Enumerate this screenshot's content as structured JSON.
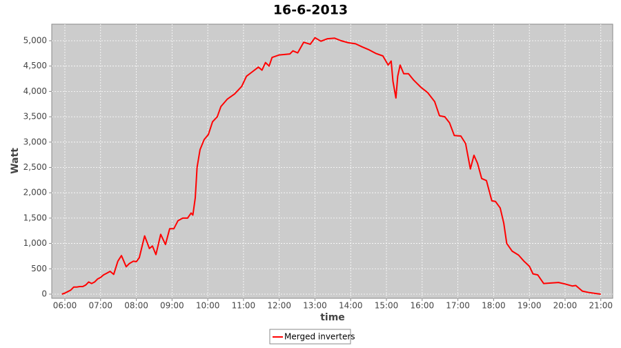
{
  "chart_data": {
    "type": "line",
    "title": "16-6-2013",
    "x_label": "time",
    "y_label": "Watt",
    "x": [
      "05:55",
      "06:00",
      "06:05",
      "06:10",
      "06:15",
      "06:20",
      "06:25",
      "06:30",
      "06:35",
      "06:40",
      "06:45",
      "06:50",
      "06:55",
      "07:00",
      "07:05",
      "07:10",
      "07:16",
      "07:22",
      "07:29",
      "07:35",
      "07:43",
      "07:48",
      "07:55",
      "08:00",
      "08:05",
      "08:14",
      "08:22",
      "08:27",
      "08:33",
      "08:41",
      "08:49",
      "08:56",
      "09:03",
      "09:10",
      "09:18",
      "09:26",
      "09:32",
      "09:35",
      "09:39",
      "09:42",
      "09:47",
      "09:54",
      "10:01",
      "10:08",
      "10:16",
      "10:22",
      "10:33",
      "10:45",
      "10:57",
      "11:05",
      "11:14",
      "11:25",
      "11:31",
      "11:37",
      "11:43",
      "11:48",
      "12:00",
      "12:18",
      "12:23",
      "12:31",
      "12:41",
      "12:52",
      "13:00",
      "13:10",
      "13:21",
      "13:33",
      "13:44",
      "13:56",
      "14:08",
      "14:19",
      "14:31",
      "14:42",
      "14:54",
      "15:03",
      "15:08",
      "15:11",
      "15:16",
      "15:19",
      "15:23",
      "15:29",
      "15:37",
      "15:46",
      "15:58",
      "16:09",
      "16:21",
      "16:29",
      "16:38",
      "16:46",
      "16:54",
      "17:05",
      "17:13",
      "17:21",
      "17:27",
      "17:33",
      "17:40",
      "17:48",
      "17:57",
      "18:03",
      "18:11",
      "18:17",
      "18:22",
      "18:31",
      "18:42",
      "18:51",
      "19:00",
      "19:06",
      "19:14",
      "19:24",
      "19:38",
      "19:49",
      "20:00",
      "20:12",
      "20:18",
      "20:29",
      "20:41",
      "20:53",
      "21:00"
    ],
    "series": [
      {
        "name": "Merged inverters",
        "color": "#ff0000",
        "values": [
          0,
          20,
          50,
          80,
          140,
          140,
          150,
          150,
          180,
          240,
          210,
          240,
          300,
          330,
          380,
          410,
          450,
          390,
          650,
          760,
          540,
          600,
          650,
          640,
          720,
          1150,
          900,
          950,
          780,
          1180,
          980,
          1290,
          1290,
          1450,
          1500,
          1500,
          1600,
          1560,
          1900,
          2500,
          2850,
          3050,
          3150,
          3400,
          3500,
          3700,
          3850,
          3950,
          4100,
          4300,
          4380,
          4480,
          4420,
          4570,
          4500,
          4670,
          4720,
          4740,
          4800,
          4760,
          4970,
          4930,
          5060,
          4990,
          5040,
          5050,
          5000,
          4960,
          4940,
          4880,
          4820,
          4750,
          4700,
          4520,
          4600,
          4200,
          3870,
          4300,
          4520,
          4350,
          4350,
          4220,
          4080,
          3980,
          3800,
          3520,
          3500,
          3380,
          3130,
          3120,
          2970,
          2470,
          2740,
          2580,
          2280,
          2240,
          1840,
          1830,
          1700,
          1400,
          1000,
          850,
          770,
          650,
          550,
          400,
          380,
          210,
          220,
          230,
          200,
          160,
          170,
          60,
          30,
          10,
          0
        ]
      }
    ],
    "xlim": [
      "05:38",
      "21:20"
    ],
    "xticks": [
      "06:00",
      "07:00",
      "08:00",
      "09:00",
      "10:00",
      "11:00",
      "12:00",
      "13:00",
      "14:00",
      "15:00",
      "16:00",
      "17:00",
      "18:00",
      "19:00",
      "20:00",
      "21:00"
    ],
    "ylim": [
      -82,
      5327
    ],
    "yticks": [
      0,
      500,
      {
        "value": 1000,
        "label": "1,000"
      },
      {
        "value": 1500,
        "label": "1,500"
      },
      {
        "value": 2000,
        "label": "2,000"
      },
      {
        "value": 2500,
        "label": "2,500"
      },
      {
        "value": 3000,
        "label": "3,000"
      },
      {
        "value": 3500,
        "label": "3,500"
      },
      {
        "value": 4000,
        "label": "4,000"
      },
      {
        "value": 4500,
        "label": "4,500"
      },
      {
        "value": 5000,
        "label": "5,000"
      }
    ],
    "grid": true,
    "legend": "bottom"
  }
}
